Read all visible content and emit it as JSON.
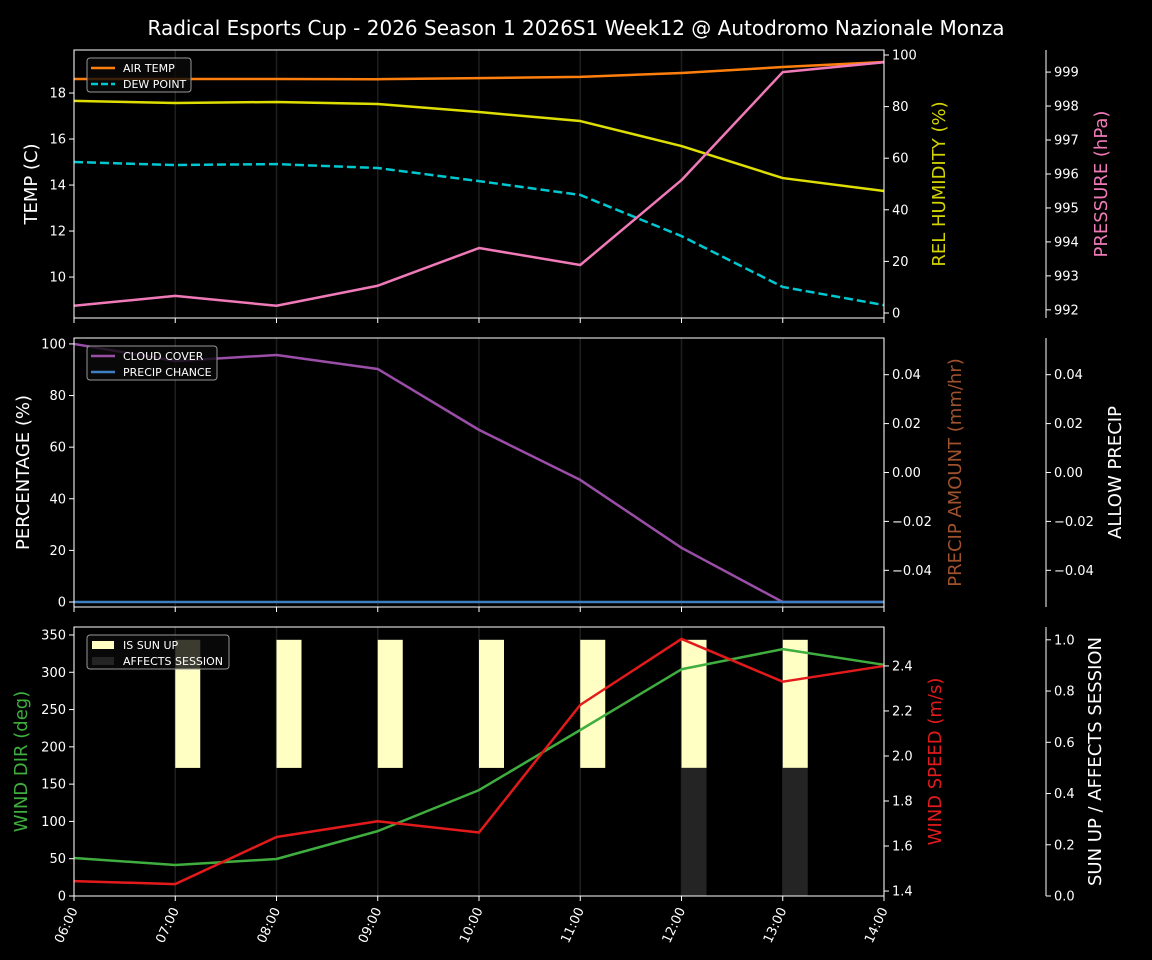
{
  "title": "Radical Esports Cup - 2026 Season 1 2026S1 Week12 @ Autodromo Nazionale Monza",
  "chart_data": [
    {
      "type": "line",
      "x": [
        "06:00",
        "07:00",
        "08:00",
        "09:00",
        "10:00",
        "11:00",
        "12:00",
        "13:00",
        "14:00"
      ],
      "grid": "vertical",
      "legend": {
        "placement": "top-left",
        "entries": [
          "AIR TEMP",
          "DEW POINT"
        ]
      },
      "axes": {
        "left": {
          "label": "TEMP (C)",
          "ylim": [
            8.22,
            19.87
          ],
          "ticks": [
            10,
            12,
            14,
            16,
            18
          ],
          "color": "#ffffff"
        },
        "right": {
          "label": "REL HUMIDITY (%)",
          "ylim": [
            -1.94,
            101.94
          ],
          "ticks": [
            0,
            20,
            40,
            60,
            80,
            100
          ],
          "color": "#d4d400"
        },
        "right2": {
          "label": "PRESSURE (hPa)",
          "ylim": [
            991.76,
            999.65
          ],
          "ticks": [
            992,
            993,
            994,
            995,
            996,
            997,
            998,
            999
          ],
          "color": "#f07ab8"
        }
      },
      "series": [
        {
          "name": "AIR TEMP",
          "axis": "left",
          "color": "#ff7f0e",
          "style": "solid",
          "values": [
            18.61,
            18.61,
            18.61,
            18.6,
            18.65,
            18.7,
            18.87,
            19.13,
            19.35
          ]
        },
        {
          "name": "DEW POINT",
          "axis": "left",
          "color": "#00c8d0",
          "style": "dashed",
          "values": [
            15.0,
            14.87,
            14.91,
            14.74,
            14.17,
            13.57,
            11.78,
            9.57,
            8.78
          ]
        },
        {
          "axis": "right",
          "color": "#dede00",
          "style": "solid",
          "values": [
            82.2,
            81.4,
            81.8,
            81.0,
            77.9,
            74.4,
            64.7,
            52.3,
            47.3
          ]
        },
        {
          "axis": "right2",
          "color": "#f07ab8",
          "style": "solid",
          "values": [
            992.12,
            992.41,
            992.12,
            992.71,
            993.82,
            993.32,
            995.82,
            999.0,
            999.29
          ]
        }
      ]
    },
    {
      "type": "line",
      "x": [
        "06:00",
        "07:00",
        "08:00",
        "09:00",
        "10:00",
        "11:00",
        "12:00",
        "13:00",
        "14:00"
      ],
      "grid": "vertical",
      "legend": {
        "placement": "top-left",
        "entries": [
          "CLOUD COVER",
          "PRECIP CHANCE"
        ]
      },
      "axes": {
        "left": {
          "label": "PERCENTAGE (%)",
          "ylim": [
            -1.94,
            102.3
          ],
          "ticks": [
            0,
            20,
            40,
            60,
            80,
            100
          ],
          "color": "#ffffff"
        },
        "right": {
          "label": "PRECIP AMOUNT (mm/hr)",
          "ylim": [
            -0.055,
            0.055
          ],
          "ticks": [
            -0.04,
            -0.02,
            0.0,
            0.02,
            0.04
          ],
          "tick_labels": [
            "−0.04",
            "−0.02",
            "0.00",
            "0.02",
            "0.04"
          ],
          "color": "#a0522d"
        },
        "right2": {
          "label": "ALLOW PRECIP",
          "ylim": [
            -0.055,
            0.055
          ],
          "ticks": [
            -0.04,
            -0.02,
            0.0,
            0.02,
            0.04
          ],
          "tick_labels": [
            "−0.04",
            "−0.02",
            "0.00",
            "0.02",
            "0.04"
          ],
          "color": "#ffffff"
        }
      },
      "series": [
        {
          "name": "CLOUD COVER",
          "axis": "left",
          "color": "#9a4ea8",
          "style": "solid",
          "values": [
            100,
            93.4,
            95.7,
            90.3,
            66.7,
            47.3,
            21,
            0,
            0
          ]
        },
        {
          "name": "PRECIP CHANCE",
          "axis": "left",
          "color": "#3d7fc0",
          "style": "solid",
          "values": [
            0,
            0,
            0,
            0,
            0,
            0,
            0,
            0,
            0
          ]
        }
      ]
    },
    {
      "type": "line",
      "x": [
        "06:00",
        "07:00",
        "08:00",
        "09:00",
        "10:00",
        "11:00",
        "12:00",
        "13:00",
        "14:00"
      ],
      "grid": "vertical",
      "legend": {
        "placement": "top-left",
        "entries": [
          "IS SUN UP",
          "AFFECTS SESSION"
        ]
      },
      "axes": {
        "left": {
          "label": "WIND DIR (deg)",
          "ylim": [
            0,
            360.7
          ],
          "ticks": [
            0,
            50,
            100,
            150,
            200,
            250,
            300,
            350
          ],
          "color": "#3fae3f"
        },
        "right": {
          "label": "WIND SPEED (m/s)",
          "ylim": [
            1.378,
            2.573
          ],
          "ticks": [
            1.4,
            1.6,
            1.8,
            2.0,
            2.2,
            2.4
          ],
          "tick_labels": [
            "1.4",
            "1.6",
            "1.8",
            "2.0",
            "2.2",
            "2.4"
          ],
          "color": "#e31a1c"
        },
        "right2": {
          "label": "SUN UP / AFFECTS SESSION",
          "ylim": [
            0,
            1.05
          ],
          "ticks": [
            0,
            0.2,
            0.4,
            0.6,
            0.8,
            1.0
          ],
          "tick_labels": [
            "0.0",
            "0.2",
            "0.4",
            "0.6",
            "0.8",
            "1.0"
          ],
          "color": "#ffffff"
        }
      },
      "bars": [
        {
          "name": "IS SUN UP",
          "axis": "right2",
          "color": "#ffffc4",
          "bottom": 0.5,
          "values": [
            0,
            0.5,
            0.5,
            0.5,
            0.5,
            0.5,
            0.5,
            0.5,
            0
          ]
        },
        {
          "name": "AFFECTS SESSION",
          "axis": "right2",
          "color": "#242424",
          "bottom": 0,
          "values": [
            0,
            0,
            0,
            0,
            0,
            0,
            0.5,
            0.5,
            0
          ]
        }
      ],
      "series": [
        {
          "axis": "left",
          "color": "#3fae3f",
          "style": "solid",
          "values": [
            51,
            41.6,
            49.6,
            87,
            142,
            222.6,
            304,
            331,
            310
          ]
        },
        {
          "axis": "right",
          "color": "#e31a1c",
          "style": "solid",
          "values": [
            1.444,
            1.431,
            1.64,
            1.71,
            1.66,
            2.227,
            2.52,
            2.33,
            2.4
          ]
        }
      ]
    }
  ]
}
